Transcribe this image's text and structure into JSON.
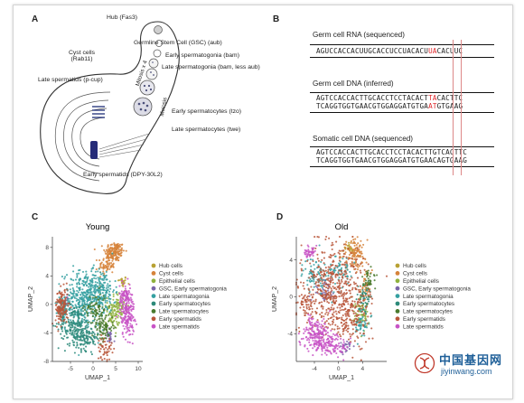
{
  "panels": {
    "a": {
      "letter": "A",
      "labels": {
        "hub": "Hub (Fas3)",
        "gsc": "Germline Stem Cell (GSC) (aub)",
        "early_spg": "Early spermatogonia (bam)",
        "late_spg": "Late spermatogonia (bam, less aub)",
        "cyst": "Cyst cells",
        "cyst_marker": "(Rab11)",
        "mitosis": "Mitosis x 4",
        "meiosis": "Meiosis",
        "late_spt": "Late spermatids (p-cup)",
        "early_spc": "Early spermatocytes (tzo)",
        "late_spc": "Late spermatocytes (twe)",
        "early_spt": "Early spermatids (DPY-30L2)"
      }
    },
    "b": {
      "letter": "B",
      "rna_title": "Germ cell RNA (sequenced)",
      "rna_pre": "AGUCCACCACUUGCACCUCCUACACU",
      "rna_hl": "UA",
      "rna_post": "CACUUC",
      "germ_dna_title": "Germ cell DNA (inferred)",
      "germ_top_pre": "AGTCCACCACTTGCACCTCCTACACT",
      "germ_top_hl": "TA",
      "germ_top_post": "CACTTC",
      "germ_bot_pre": "TCAGGTGGTGAACGTGGAGGATGTGA",
      "germ_bot_hl": "AT",
      "germ_bot_post": "GTGAAG",
      "soma_title": "Somatic cell DNA (sequenced)",
      "soma_top": "AGTCCACCACTTGCACCTCCTACACTTGTCACTTC",
      "soma_bot": "TCAGGTGGTGAACGTGGAGGATGTGAACAGTGAAG",
      "highlight_color": "#e0262a"
    },
    "c": {
      "letter": "C"
    },
    "d": {
      "letter": "D"
    }
  },
  "chart_data": [
    {
      "type": "scatter",
      "title": "Young",
      "xlabel": "UMAP_1",
      "ylabel": "UMAP_2",
      "xlim": [
        -9,
        11
      ],
      "ylim": [
        -8,
        9.5
      ],
      "xticks": [
        -5,
        0,
        5,
        10
      ],
      "yticks": [
        -8,
        -4,
        0,
        4,
        8
      ],
      "legend_position": "right",
      "series": [
        {
          "name": "Hub cells",
          "color": "#b8a133",
          "clusters": [
            {
              "x": 6.5,
              "y": 3.2,
              "sx": 0.5,
              "sy": 0.4,
              "n": 25
            }
          ]
        },
        {
          "name": "Cyst cells",
          "color": "#d6833a",
          "clusters": [
            {
              "x": 4.8,
              "y": 7.4,
              "sx": 1.1,
              "sy": 0.7,
              "n": 150
            },
            {
              "x": 3.0,
              "y": 5.5,
              "sx": 0.9,
              "sy": 0.7,
              "n": 70
            }
          ]
        },
        {
          "name": "Epithelial cells",
          "color": "#8fb23e",
          "clusters": [
            {
              "x": 5.5,
              "y": -0.2,
              "sx": 1.1,
              "sy": 0.9,
              "n": 90
            },
            {
              "x": 4.3,
              "y": -2.0,
              "sx": 0.8,
              "sy": 0.7,
              "n": 50
            }
          ]
        },
        {
          "name": "GSC, Early spermatogonia",
          "color": "#7a65a9",
          "clusters": [
            {
              "x": 3.6,
              "y": -4.6,
              "sx": 0.4,
              "sy": 0.5,
              "n": 25
            },
            {
              "x": -6.2,
              "y": 0.3,
              "sx": 0.4,
              "sy": 0.6,
              "n": 20
            }
          ]
        },
        {
          "name": "Late spermatogonia",
          "color": "#35a0a1",
          "clusters": [
            {
              "x": -2.0,
              "y": 0.6,
              "sx": 2.3,
              "sy": 2.0,
              "n": 380
            },
            {
              "x": -6.8,
              "y": -0.8,
              "sx": 0.6,
              "sy": 1.0,
              "n": 60
            },
            {
              "x": 1.8,
              "y": 2.0,
              "sx": 1.5,
              "sy": 1.5,
              "n": 160
            }
          ]
        },
        {
          "name": "Early spermatocytes",
          "color": "#2d8a7a",
          "clusters": [
            {
              "x": -4.2,
              "y": -2.8,
              "sx": 1.7,
              "sy": 1.4,
              "n": 180
            },
            {
              "x": -1.4,
              "y": -4.6,
              "sx": 1.5,
              "sy": 0.9,
              "n": 120
            }
          ]
        },
        {
          "name": "Late spermatocytes",
          "color": "#4a7a2e",
          "clusters": [
            {
              "x": 2.2,
              "y": -3.2,
              "sx": 1.2,
              "sy": 1.0,
              "n": 90
            },
            {
              "x": 0.6,
              "y": -0.6,
              "sx": 1.2,
              "sy": 1.1,
              "n": 80
            }
          ]
        },
        {
          "name": "Early spermatids",
          "color": "#b9563a",
          "clusters": [
            {
              "x": -6.9,
              "y": -0.3,
              "sx": 0.7,
              "sy": 1.3,
              "n": 140
            },
            {
              "x": 2.6,
              "y": -6.2,
              "sx": 0.8,
              "sy": 0.8,
              "n": 50
            }
          ]
        },
        {
          "name": "Late spermatids",
          "color": "#c853c6",
          "clusters": [
            {
              "x": 7.6,
              "y": -1.3,
              "sx": 0.8,
              "sy": 1.7,
              "n": 180
            },
            {
              "x": 7.1,
              "y": 1.1,
              "sx": 0.6,
              "sy": 0.8,
              "n": 60
            }
          ]
        }
      ]
    },
    {
      "type": "scatter",
      "title": "Old",
      "xlabel": "UMAP_1",
      "ylabel": "UMAP_2",
      "xlim": [
        -7,
        8
      ],
      "ylim": [
        -7,
        6.5
      ],
      "xticks": [
        -4,
        0,
        4
      ],
      "yticks": [
        -4,
        0,
        4
      ],
      "legend_position": "right",
      "series": [
        {
          "name": "Hub cells",
          "color": "#b8a133",
          "clusters": [
            {
              "x": 1.8,
              "y": 5.3,
              "sx": 0.5,
              "sy": 0.3,
              "n": 25
            }
          ]
        },
        {
          "name": "Cyst cells",
          "color": "#d6833a",
          "clusters": [
            {
              "x": 2.6,
              "y": 4.6,
              "sx": 1.0,
              "sy": 0.8,
              "n": 120
            },
            {
              "x": 4.6,
              "y": 1.2,
              "sx": 0.5,
              "sy": 0.8,
              "n": 40
            }
          ]
        },
        {
          "name": "Epithelial cells",
          "color": "#8fb23e",
          "clusters": [
            {
              "x": 3.8,
              "y": -1.8,
              "sx": 0.8,
              "sy": 1.0,
              "n": 70
            }
          ]
        },
        {
          "name": "GSC, Early spermatogonia",
          "color": "#7a65a9",
          "clusters": [
            {
              "x": -2.5,
              "y": 0.6,
              "sx": 0.9,
              "sy": 0.6,
              "n": 40
            },
            {
              "x": 1.0,
              "y": -5.4,
              "sx": 0.6,
              "sy": 0.4,
              "n": 25
            }
          ]
        },
        {
          "name": "Late spermatogonia",
          "color": "#35a0a1",
          "clusters": [
            {
              "x": -3.8,
              "y": 2.4,
              "sx": 1.0,
              "sy": 0.9,
              "n": 80
            },
            {
              "x": 3.9,
              "y": -3.1,
              "sx": 0.6,
              "sy": 0.7,
              "n": 50
            },
            {
              "x": 0.5,
              "y": 2.8,
              "sx": 0.9,
              "sy": 0.8,
              "n": 60
            }
          ]
        },
        {
          "name": "Early spermatocytes",
          "color": "#2d8a7a",
          "clusters": [
            {
              "x": 4.4,
              "y": -0.3,
              "sx": 0.6,
              "sy": 0.9,
              "n": 50
            }
          ]
        },
        {
          "name": "Late spermatocytes",
          "color": "#4a7a2e",
          "clusters": [
            {
              "x": 5.0,
              "y": 1.8,
              "sx": 0.6,
              "sy": 0.7,
              "n": 40
            }
          ]
        },
        {
          "name": "Early spermatids",
          "color": "#b9563a",
          "clusters": [
            {
              "x": -1.0,
              "y": 1.2,
              "sx": 2.6,
              "sy": 2.2,
              "n": 430
            },
            {
              "x": 1.6,
              "y": -2.0,
              "sx": 1.8,
              "sy": 1.5,
              "n": 180
            },
            {
              "x": -5.3,
              "y": -0.8,
              "sx": 0.6,
              "sy": 1.0,
              "n": 50
            }
          ]
        },
        {
          "name": "Late spermatids",
          "color": "#c853c6",
          "clusters": [
            {
              "x": -4.0,
              "y": -3.9,
              "sx": 1.2,
              "sy": 0.9,
              "n": 160
            },
            {
              "x": -1.5,
              "y": -5.2,
              "sx": 1.4,
              "sy": 0.6,
              "n": 140
            },
            {
              "x": -4.8,
              "y": 4.8,
              "sx": 0.5,
              "sy": 0.4,
              "n": 40
            }
          ]
        }
      ]
    }
  ],
  "watermark": {
    "text": "中国基因网",
    "url": "jiyinwang.com",
    "logo_color": "#c0392b"
  }
}
